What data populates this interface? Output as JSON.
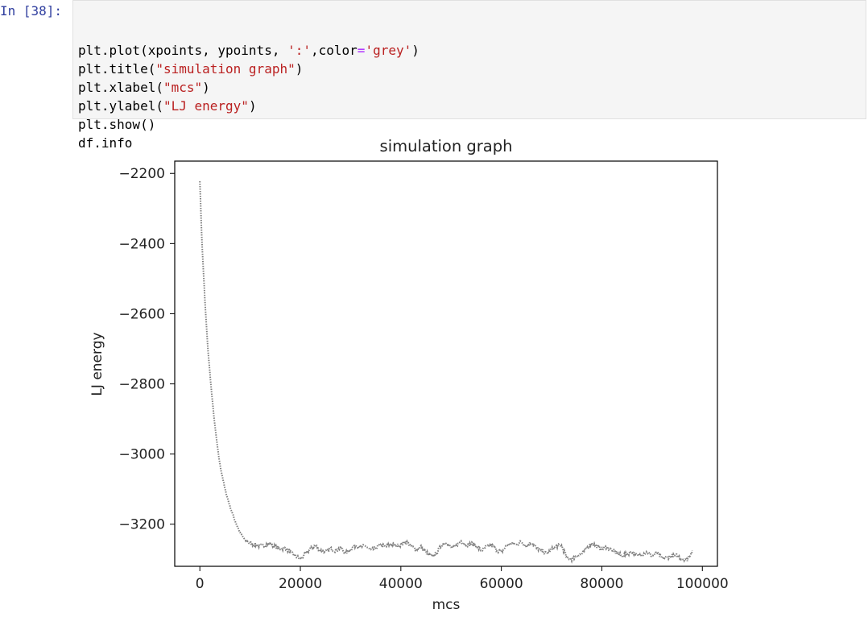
{
  "cell": {
    "prompt": "In [38]:",
    "code_lines": [
      [
        {
          "t": "plt.plot(xpoints, ypoints, ",
          "k": "n"
        },
        {
          "t": "':'",
          "k": "s"
        },
        {
          "t": ",color",
          "k": "n"
        },
        {
          "t": "=",
          "k": "o"
        },
        {
          "t": "'grey'",
          "k": "s"
        },
        {
          "t": ")",
          "k": "n"
        }
      ],
      [
        {
          "t": "plt.title(",
          "k": "n"
        },
        {
          "t": "\"simulation graph\"",
          "k": "s"
        },
        {
          "t": ")",
          "k": "n"
        }
      ],
      [
        {
          "t": "plt.xlabel(",
          "k": "n"
        },
        {
          "t": "\"mcs\"",
          "k": "s"
        },
        {
          "t": ")",
          "k": "n"
        }
      ],
      [
        {
          "t": "plt.ylabel(",
          "k": "n"
        },
        {
          "t": "\"LJ energy\"",
          "k": "s"
        },
        {
          "t": ")",
          "k": "n"
        }
      ],
      [
        {
          "t": "plt.show()",
          "k": "n"
        }
      ],
      [
        {
          "t": "df.info",
          "k": "n"
        }
      ]
    ]
  },
  "chart_data": {
    "type": "line",
    "title": "simulation graph",
    "xlabel": "mcs",
    "ylabel": "LJ energy",
    "xlim": [
      -5000,
      103000
    ],
    "ylim": [
      -3320,
      -2165
    ],
    "xticks": [
      0,
      20000,
      40000,
      60000,
      80000,
      100000
    ],
    "yticks": [
      -2200,
      -2400,
      -2600,
      -2800,
      -3000,
      -3200
    ],
    "xtick_labels": [
      "0",
      "20000",
      "40000",
      "60000",
      "80000",
      "100000"
    ],
    "ytick_labels": [
      "−2200",
      "−2400",
      "−2600",
      "−2800",
      "−3000",
      "−3200"
    ],
    "grid": false,
    "line_style": "dotted",
    "series": [
      {
        "color": "#808080",
        "x": [
          0,
          250,
          500,
          1000,
          1500,
          2000,
          2500,
          3000,
          3500,
          4000,
          5000,
          6000,
          7000,
          8000,
          9000,
          10000,
          11000,
          12000,
          13000,
          14000,
          15000,
          16000,
          17000,
          18000,
          19000,
          20000,
          21000,
          22000,
          23000,
          24000,
          25000,
          26000,
          27000,
          28000,
          29000,
          30000,
          31000,
          32000,
          33000,
          34000,
          35000,
          36000,
          37000,
          38000,
          39000,
          40000,
          41000,
          42000,
          43000,
          44000,
          45000,
          46000,
          47000,
          48000,
          49000,
          50000,
          51000,
          52000,
          53000,
          54000,
          55000,
          56000,
          57000,
          58000,
          59000,
          60000,
          61000,
          62000,
          63000,
          64000,
          65000,
          66000,
          67000,
          68000,
          69000,
          70000,
          71000,
          72000,
          73000,
          74000,
          75000,
          76000,
          77000,
          78000,
          79000,
          80000,
          81000,
          82000,
          83000,
          84000,
          85000,
          86000,
          87000,
          88000,
          89000,
          90000,
          91000,
          92000,
          93000,
          94000,
          95000,
          96000,
          97000,
          98000
        ],
        "y": [
          -2220,
          -2330,
          -2420,
          -2560,
          -2680,
          -2770,
          -2850,
          -2920,
          -2980,
          -3030,
          -3100,
          -3150,
          -3190,
          -3225,
          -3245,
          -3255,
          -3258,
          -3262,
          -3258,
          -3255,
          -3265,
          -3270,
          -3268,
          -3280,
          -3290,
          -3300,
          -3285,
          -3270,
          -3260,
          -3275,
          -3280,
          -3270,
          -3275,
          -3268,
          -3282,
          -3272,
          -3260,
          -3265,
          -3262,
          -3275,
          -3268,
          -3258,
          -3265,
          -3255,
          -3262,
          -3258,
          -3250,
          -3262,
          -3272,
          -3265,
          -3280,
          -3292,
          -3285,
          -3262,
          -3250,
          -3268,
          -3262,
          -3248,
          -3260,
          -3255,
          -3262,
          -3275,
          -3265,
          -3260,
          -3272,
          -3280,
          -3262,
          -3255,
          -3258,
          -3250,
          -3262,
          -3252,
          -3268,
          -3275,
          -3285,
          -3272,
          -3262,
          -3262,
          -3295,
          -3300,
          -3290,
          -3285,
          -3268,
          -3255,
          -3262,
          -3270,
          -3265,
          -3275,
          -3282,
          -3290,
          -3285,
          -3278,
          -3290,
          -3285,
          -3280,
          -3290,
          -3282,
          -3298,
          -3295,
          -3290,
          -3290,
          -3298,
          -3300,
          -3275
        ]
      }
    ]
  }
}
